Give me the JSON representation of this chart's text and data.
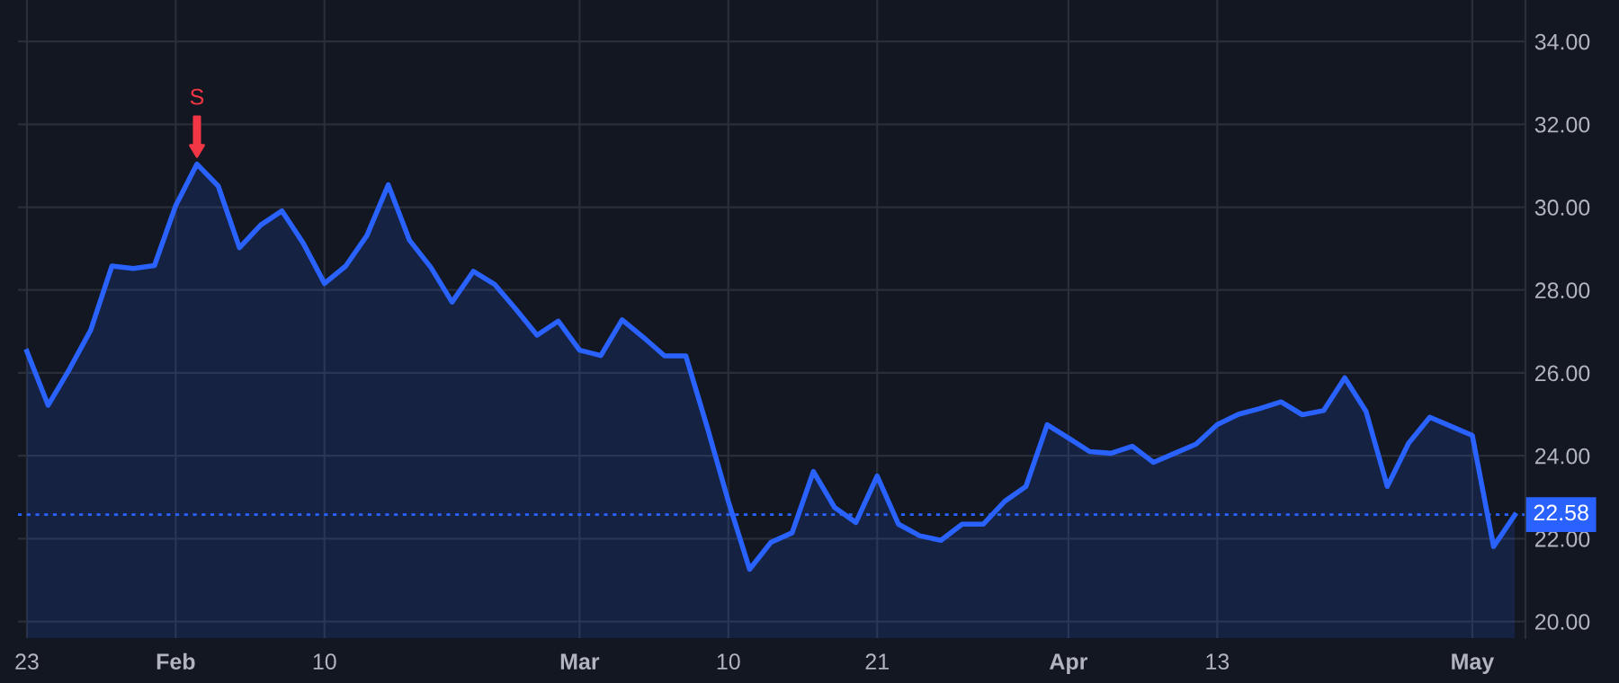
{
  "chart_data": {
    "type": "area",
    "categories": [
      "23",
      null,
      null,
      null,
      null,
      null,
      null,
      "Feb",
      null,
      null,
      null,
      null,
      null,
      null,
      "10",
      null,
      null,
      null,
      null,
      null,
      null,
      null,
      null,
      null,
      null,
      null,
      "Mar",
      null,
      null,
      null,
      null,
      null,
      null,
      "10",
      null,
      null,
      null,
      null,
      null,
      null,
      "21",
      null,
      null,
      null,
      null,
      null,
      null,
      null,
      null,
      "Apr",
      null,
      null,
      null,
      null,
      null,
      null,
      "13",
      null,
      null,
      null,
      null,
      null,
      null,
      null,
      null,
      null,
      null,
      null,
      "May",
      null,
      null
    ],
    "series": [
      {
        "color": "#2962ff",
        "values": [
          26.52,
          25.22,
          26.09,
          27.03,
          28.58,
          28.52,
          28.59,
          30.04,
          31.04,
          30.51,
          29.02,
          29.57,
          29.91,
          29.13,
          28.16,
          28.58,
          29.32,
          30.54,
          29.2,
          28.55,
          27.71,
          28.45,
          28.14,
          27.54,
          26.91,
          27.25,
          26.55,
          26.42,
          27.28,
          26.86,
          26.41,
          26.41,
          24.7,
          22.9,
          21.26,
          21.91,
          22.14,
          23.62,
          22.75,
          22.39,
          23.51,
          22.35,
          22.07,
          21.96,
          22.35,
          22.35,
          22.9,
          23.26,
          24.75,
          24.43,
          24.1,
          24.06,
          24.23,
          23.84,
          24.06,
          24.28,
          24.75,
          25.0,
          25.14,
          25.3,
          24.99,
          25.09,
          25.88,
          25.07,
          23.26,
          24.3,
          24.93,
          24.71,
          24.49,
          21.81,
          22.57
        ]
      }
    ],
    "ylim": [
      19.6,
      35
    ],
    "yticks": [
      {
        "value": 20,
        "label": "20.00"
      },
      {
        "value": 22,
        "label": "22.00"
      },
      {
        "value": 24,
        "label": "24.00"
      },
      {
        "value": 26,
        "label": "26.00"
      },
      {
        "value": 28,
        "label": "28.00"
      },
      {
        "value": 30,
        "label": "30.00"
      },
      {
        "value": 32,
        "label": "32.00"
      },
      {
        "value": 34,
        "label": "34.00"
      }
    ],
    "ref_lines": [
      {
        "axis": "y",
        "value": 22.58,
        "label": "22.58",
        "color": "#2962ff",
        "line_style": "dotted"
      }
    ],
    "annotations": [
      {
        "text": "S",
        "y": 31.04
      }
    ],
    "grid": true,
    "legend": false
  }
}
